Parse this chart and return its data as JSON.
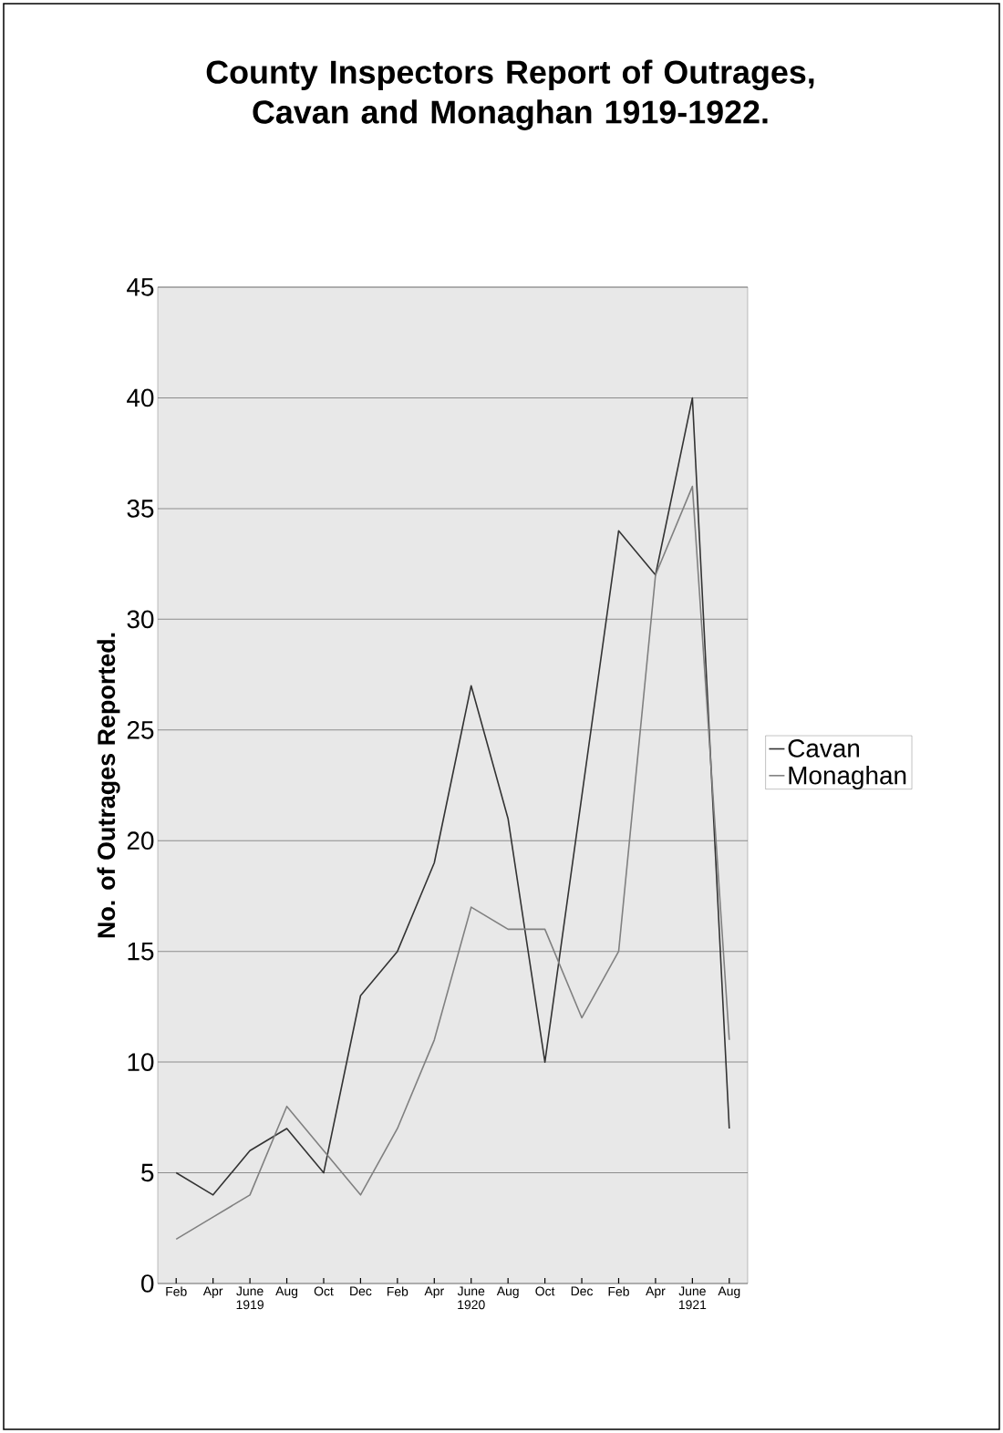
{
  "chart_data": {
    "type": "line",
    "title": "County Inspectors Report of Outrages, Cavan and Monaghan 1919-1922.",
    "ylabel": "No. of Outrages Reported.",
    "categories": [
      "Feb",
      "Apr",
      "June 1919",
      "Aug",
      "Oct",
      "Dec",
      "Feb",
      "Apr",
      "June 1920",
      "Aug",
      "Oct",
      "Dec",
      "Feb",
      "Apr",
      "June 1921",
      "Aug"
    ],
    "series": [
      {
        "name": "Cavan",
        "color": "#333333",
        "values": [
          5,
          4,
          6,
          7,
          5,
          13,
          15,
          19,
          27,
          21,
          10,
          22,
          34,
          32,
          40,
          7
        ]
      },
      {
        "name": "Monaghan",
        "color": "#808080",
        "values": [
          2,
          3,
          4,
          8,
          6,
          4,
          7,
          11,
          17,
          16,
          16,
          12,
          15,
          32,
          36,
          11
        ]
      }
    ],
    "ylim": [
      0,
      45
    ],
    "yticks": [
      0,
      5,
      10,
      15,
      20,
      25,
      30,
      35,
      40,
      45
    ],
    "grid": "y",
    "legend": "right",
    "marker": "none",
    "line_style": "solid"
  }
}
